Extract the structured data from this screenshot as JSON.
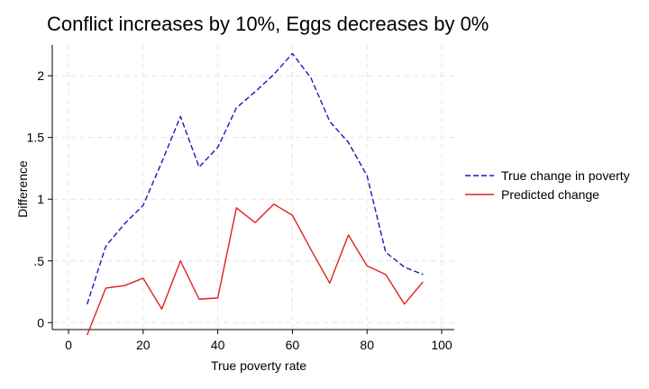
{
  "chart_data": {
    "type": "line",
    "title": "Conflict increases by 10%, Eggs decreases by 0%",
    "xlabel": "True poverty rate",
    "ylabel": "Difference",
    "xlim": [
      0,
      100
    ],
    "ylim": [
      -0.1,
      2.3
    ],
    "xticks": [
      0,
      20,
      40,
      60,
      80,
      100
    ],
    "xtick_labels": [
      "0",
      "20",
      "40",
      "60",
      "80",
      "100"
    ],
    "yticks": [
      0,
      0.5,
      1,
      1.5,
      2
    ],
    "ytick_labels": [
      "0",
      ".5",
      "1",
      "1.5",
      "2"
    ],
    "grid": true,
    "legend_position": "right",
    "x": [
      5,
      10,
      15,
      20,
      25,
      30,
      35,
      40,
      45,
      50,
      55,
      60,
      65,
      70,
      75,
      80,
      85,
      90,
      95
    ],
    "series": [
      {
        "name": "True change in poverty",
        "color": "#1a1ab4",
        "dash": "dashed",
        "values": [
          0.15,
          0.62,
          0.8,
          0.95,
          1.3,
          1.67,
          1.26,
          1.42,
          1.74,
          1.87,
          2.01,
          2.18,
          1.98,
          1.63,
          1.46,
          1.19,
          0.57,
          0.45,
          0.39
        ]
      },
      {
        "name": "Predicted change",
        "color": "#e02020",
        "dash": "solid",
        "values": [
          -0.1,
          0.28,
          0.3,
          0.36,
          0.11,
          0.5,
          0.19,
          0.2,
          0.93,
          0.81,
          0.96,
          0.87,
          0.59,
          0.32,
          0.71,
          0.46,
          0.39,
          0.15,
          0.33
        ]
      }
    ]
  }
}
